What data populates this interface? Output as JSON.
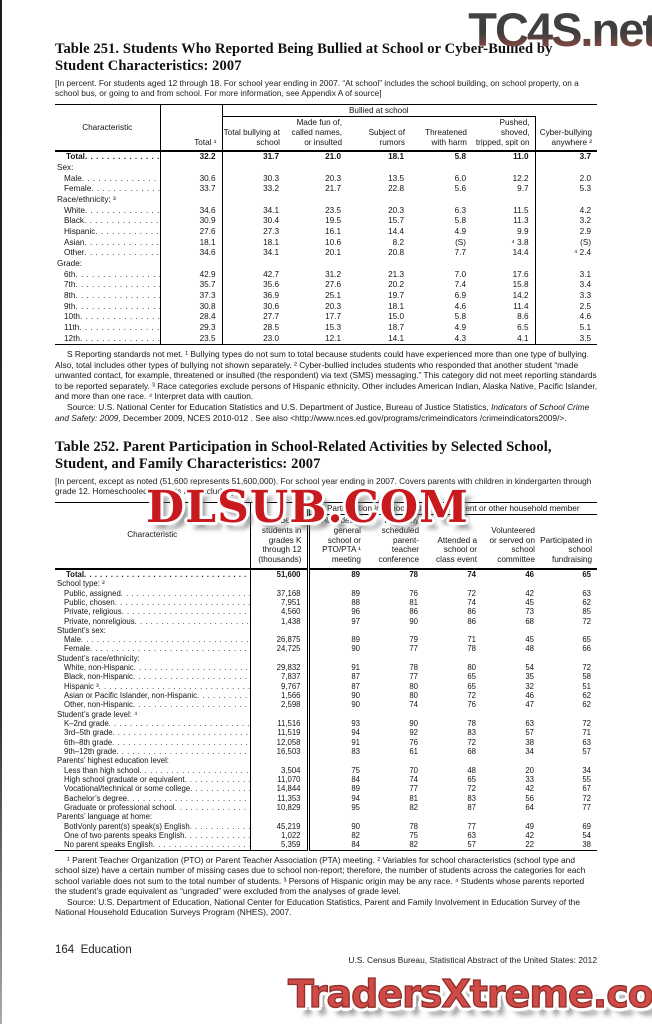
{
  "watermarks": {
    "top": "TC4S.net",
    "middle": "DLSUB.COM",
    "bottom": "TradersXtreme.com"
  },
  "table251": {
    "title": "Table 251. Students Who Reported Being Bullied at School or Cyber-Bullied by Student Characteristics: 2007",
    "note": "[In percent. For students aged 12 through 18. For school year ending in 2007. “At school” includes the school building, on school property, on a school bus, or going to and from school. For more information, see Appendix A of source]",
    "group_header": "Bullied at school",
    "columns": [
      "Characteristic",
      "Total ¹",
      "Total bullying at school",
      "Made fun of, called names, or insulted",
      "Subject of rumors",
      "Threatened with harm",
      "Pushed, shoved, tripped, spit on",
      "Cyber-bullying anywhere ²"
    ],
    "rows": [
      {
        "label": "Total",
        "type": "total",
        "values": [
          "32.2",
          "31.7",
          "21.0",
          "18.1",
          "5.8",
          "11.0",
          "3.7"
        ]
      },
      {
        "label": "Sex:",
        "type": "section",
        "values": []
      },
      {
        "label": "Male",
        "type": "item",
        "values": [
          "30.6",
          "30.3",
          "20.3",
          "13.5",
          "6.0",
          "12.2",
          "2.0"
        ]
      },
      {
        "label": "Female",
        "type": "item",
        "values": [
          "33.7",
          "33.2",
          "21.7",
          "22.8",
          "5.6",
          "9.7",
          "5.3"
        ]
      },
      {
        "label": "Race/ethnicity: ³",
        "type": "section",
        "values": []
      },
      {
        "label": "White",
        "type": "item",
        "values": [
          "34.6",
          "34.1",
          "23.5",
          "20.3",
          "6.3",
          "11.5",
          "4.2"
        ]
      },
      {
        "label": "Black",
        "type": "item",
        "values": [
          "30.9",
          "30.4",
          "19.5",
          "15.7",
          "5.8",
          "11.3",
          "3.2"
        ]
      },
      {
        "label": "Hispanic",
        "type": "item",
        "values": [
          "27.6",
          "27.3",
          "16.1",
          "14.4",
          "4.9",
          "9.9",
          "2.9"
        ]
      },
      {
        "label": "Asian",
        "type": "item",
        "values": [
          "18.1",
          "18.1",
          "10.6",
          "8.2",
          "(S)",
          "⁴ 3.8",
          "(S)"
        ]
      },
      {
        "label": "Other",
        "type": "item",
        "values": [
          "34.6",
          "34.1",
          "20.1",
          "20.8",
          "7.7",
          "14.4",
          "⁴ 2.4"
        ]
      },
      {
        "label": "Grade:",
        "type": "section",
        "values": []
      },
      {
        "label": "6th",
        "type": "item",
        "values": [
          "42.9",
          "42.7",
          "31.2",
          "21.3",
          "7.0",
          "17.6",
          "3.1"
        ]
      },
      {
        "label": "7th",
        "type": "item",
        "values": [
          "35.7",
          "35.6",
          "27.6",
          "20.2",
          "7.4",
          "15.8",
          "3.4"
        ]
      },
      {
        "label": "8th",
        "type": "item",
        "values": [
          "37.3",
          "36.9",
          "25.1",
          "19.7",
          "6.9",
          "14.2",
          "3.3"
        ]
      },
      {
        "label": "9th",
        "type": "item",
        "values": [
          "30.8",
          "30.6",
          "20.3",
          "18.1",
          "4.6",
          "11.4",
          "2.5"
        ]
      },
      {
        "label": "10th",
        "type": "item",
        "values": [
          "28.4",
          "27.7",
          "17.7",
          "15.0",
          "5.8",
          "8.6",
          "4.6"
        ]
      },
      {
        "label": "11th",
        "type": "item",
        "values": [
          "29.3",
          "28.5",
          "15.3",
          "18.7",
          "4.9",
          "6.5",
          "5.1"
        ]
      },
      {
        "label": "12th",
        "type": "item",
        "values": [
          "23.5",
          "23.0",
          "12.1",
          "14.1",
          "4.3",
          "4.1",
          "3.5"
        ]
      }
    ],
    "footnote": "S Reporting standards not met. ¹ Bullying types do not sum to total because students could have experienced more than one type of bullying. Also, total includes other types of bullying not shown separately. ² Cyber-bullied includes students who responded that another student “made unwanted contact, for example, threatened or insulted (the respondent) via text (SMS) messaging.” This category did not meet reporting standards to be reported separately. ³ Race categories exclude persons of Hispanic ethnicity. Other includes American Indian, Alaska Native, Pacific Islander, and more than one race. ⁴ Interpret data with caution.",
    "source_prefix": "Source: U.S. National Center for Education Statistics and U.S. Department of Justice, Bureau of Justice Statistics, ",
    "source_italic": "Indicators of School Crime and Safety: 2009,",
    "source_suffix": " December 2009, NCES 2010-012 . See also <http://www.nces.ed.gov/programs/crimeindicators /crimeindicators2009/>."
  },
  "table252": {
    "title": "Table 252. Parent Participation in School-Related Activities by Selected School, Student, and Family Characteristics: 2007",
    "note": "[In percent, except as noted (51,600 represents 51,600,000). For school year ending in 2007. Covers parents with children in kindergarten through grade 12. Homeschooled students are excluded]",
    "group_header": "Participation in school activities by parent or other household member",
    "columns": [
      "Characteristic",
      "Number of students in grades K through 12 (thousands)",
      "Attended a general school or PTO/PTA ¹ meeting",
      "Regularly scheduled parent-teacher conference",
      "Attended a school or class event",
      "Volunteered or served on school committee",
      "Participated in school fundraising"
    ],
    "rows": [
      {
        "label": "Total",
        "type": "total",
        "values": [
          "51,600",
          "89",
          "78",
          "74",
          "46",
          "65"
        ]
      },
      {
        "label": "School type: ²",
        "type": "section",
        "values": []
      },
      {
        "label": "Public, assigned",
        "type": "item",
        "values": [
          "37,168",
          "89",
          "76",
          "72",
          "42",
          "63"
        ]
      },
      {
        "label": "Public, chosen",
        "type": "item",
        "values": [
          "7,951",
          "88",
          "81",
          "74",
          "45",
          "62"
        ]
      },
      {
        "label": "Private, religious",
        "type": "item",
        "values": [
          "4,560",
          "96",
          "86",
          "86",
          "73",
          "85"
        ]
      },
      {
        "label": "Private, nonreligious",
        "type": "item",
        "values": [
          "1,438",
          "97",
          "90",
          "86",
          "68",
          "72"
        ]
      },
      {
        "label": "Student’s sex:",
        "type": "section",
        "values": []
      },
      {
        "label": "Male",
        "type": "item",
        "values": [
          "26,875",
          "89",
          "79",
          "71",
          "45",
          "65"
        ]
      },
      {
        "label": "Female",
        "type": "item",
        "values": [
          "24,725",
          "90",
          "77",
          "78",
          "48",
          "66"
        ]
      },
      {
        "label": "Student’s race/ethnicity:",
        "type": "section",
        "values": []
      },
      {
        "label": "White, non-Hispanic",
        "type": "item",
        "values": [
          "29,832",
          "91",
          "78",
          "80",
          "54",
          "72"
        ]
      },
      {
        "label": "Black, non-Hispanic",
        "type": "item",
        "values": [
          "7,837",
          "87",
          "77",
          "65",
          "35",
          "58"
        ]
      },
      {
        "label": "Hispanic ³",
        "type": "item",
        "values": [
          "9,767",
          "87",
          "80",
          "65",
          "32",
          "51"
        ]
      },
      {
        "label": "Asian or Pacific Islander, non-Hispanic",
        "type": "item",
        "values": [
          "1,566",
          "90",
          "80",
          "72",
          "46",
          "62"
        ]
      },
      {
        "label": "Other, non-Hispanic",
        "type": "item",
        "values": [
          "2,598",
          "90",
          "74",
          "76",
          "47",
          "62"
        ]
      },
      {
        "label": "Student’s grade level: ⁴",
        "type": "section",
        "values": []
      },
      {
        "label": "K–2nd grade",
        "type": "item",
        "values": [
          "11,516",
          "93",
          "90",
          "78",
          "63",
          "72"
        ]
      },
      {
        "label": "3rd–5th grade",
        "type": "item",
        "values": [
          "11,519",
          "94",
          "92",
          "83",
          "57",
          "71"
        ]
      },
      {
        "label": "6th–8th grade",
        "type": "item",
        "values": [
          "12,058",
          "91",
          "76",
          "72",
          "38",
          "63"
        ]
      },
      {
        "label": "9th–12th grade",
        "type": "item",
        "values": [
          "16,503",
          "83",
          "61",
          "68",
          "34",
          "57"
        ]
      },
      {
        "label": "Parents’ highest education level:",
        "type": "section",
        "values": []
      },
      {
        "label": "Less than high school",
        "type": "item",
        "values": [
          "3,504",
          "75",
          "70",
          "48",
          "20",
          "34"
        ]
      },
      {
        "label": "High school graduate or equivalent",
        "type": "item",
        "values": [
          "11,070",
          "84",
          "74",
          "65",
          "33",
          "55"
        ]
      },
      {
        "label": "Vocational/technical or some college",
        "type": "item",
        "values": [
          "14,844",
          "89",
          "77",
          "72",
          "42",
          "67"
        ]
      },
      {
        "label": "Bachelor’s degree",
        "type": "item",
        "values": [
          "11,353",
          "94",
          "81",
          "83",
          "56",
          "72"
        ]
      },
      {
        "label": "Graduate or professional school",
        "type": "item",
        "values": [
          "10,829",
          "95",
          "82",
          "87",
          "64",
          "77"
        ]
      },
      {
        "label": "Parents’ language at home:",
        "type": "section",
        "values": []
      },
      {
        "label": "Both/only parent(s) speak(s) English",
        "type": "item",
        "values": [
          "45,219",
          "90",
          "78",
          "77",
          "49",
          "69"
        ]
      },
      {
        "label": "One of two parents speaks English",
        "type": "item",
        "values": [
          "1,022",
          "82",
          "75",
          "63",
          "42",
          "54"
        ]
      },
      {
        "label": "No parent speaks English",
        "type": "item",
        "values": [
          "5,359",
          "84",
          "82",
          "57",
          "22",
          "38"
        ]
      }
    ],
    "footnote": "¹ Parent Teacher Organization (PTO) or Parent Teacher Association (PTA) meeting. ² Variables for school characteristics (school type and school size) have a certain number of missing cases due to school non-report; therefore, the number of students across the categories for each school variable does not sum to the total number of students. ³ Persons of Hispanic origin may be any race. ⁴ Students whose parents reported the student’s grade equivalent as “ungraded” were excluded from the analyses of grade level.",
    "source": "Source: U.S. Department of Education, National Center for Education Statistics, Parent and Family Involvement in Education Survey of the National Household Education Surveys Program (NHES), 2007."
  },
  "footer": {
    "page_number": "164",
    "section": "Education",
    "census_line": "U.S. Census Bureau, Statistical Abstract of the United States: 2012"
  }
}
